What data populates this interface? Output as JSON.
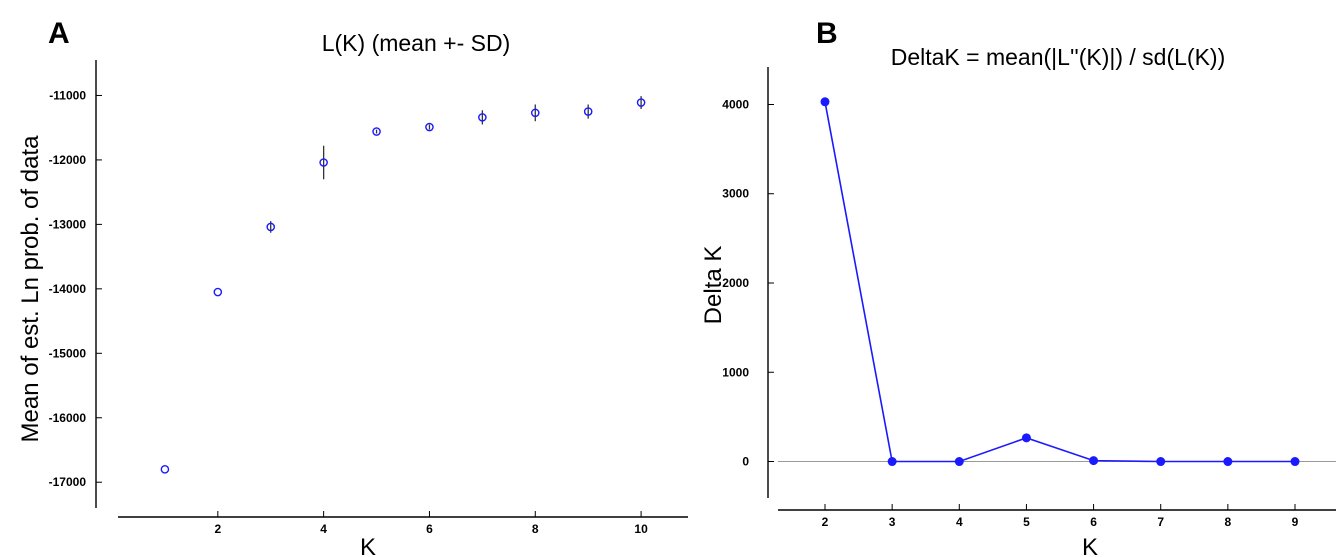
{
  "chart_data": [
    {
      "panel": "A",
      "type": "scatter",
      "title": "L(K) (mean +- SD)",
      "xlabel": "K",
      "ylabel": "Mean of est. Ln prob. of data",
      "x": [
        1,
        2,
        3,
        4,
        5,
        6,
        7,
        8,
        9,
        10
      ],
      "y": [
        -16800,
        -14050,
        -13040,
        -12040,
        -11560,
        -11490,
        -11340,
        -11270,
        -11250,
        -11110
      ],
      "sd": [
        0,
        0,
        90,
        260,
        30,
        40,
        110,
        130,
        110,
        100
      ],
      "xticks": [
        2,
        4,
        6,
        8,
        10
      ],
      "yticks": [
        -17000,
        -16000,
        -15000,
        -14000,
        -13000,
        -12000,
        -11000
      ],
      "xlim": [
        0,
        11
      ],
      "ylim": [
        -17400,
        -10450
      ],
      "marker": "open-circle",
      "color": "#1a1aff",
      "errorbar_color": "#333333"
    },
    {
      "panel": "B",
      "type": "line",
      "title": "DeltaK = mean(|L''(K)|) / sd(L(K))",
      "xlabel": "K",
      "ylabel": "Delta K",
      "x": [
        2,
        3,
        4,
        5,
        6,
        7,
        8,
        9
      ],
      "y": [
        4030,
        0,
        0,
        265,
        10,
        0,
        0,
        0
      ],
      "xticks": [
        2,
        3,
        4,
        5,
        6,
        7,
        8,
        9
      ],
      "yticks": [
        0,
        1000,
        2000,
        3000,
        4000
      ],
      "xlim": [
        1.3,
        9.7
      ],
      "ylim": [
        -420,
        4420
      ],
      "marker": "filled-circle",
      "color": "#1a1aff",
      "zero_line": true,
      "zero_line_color": "#999999"
    }
  ]
}
